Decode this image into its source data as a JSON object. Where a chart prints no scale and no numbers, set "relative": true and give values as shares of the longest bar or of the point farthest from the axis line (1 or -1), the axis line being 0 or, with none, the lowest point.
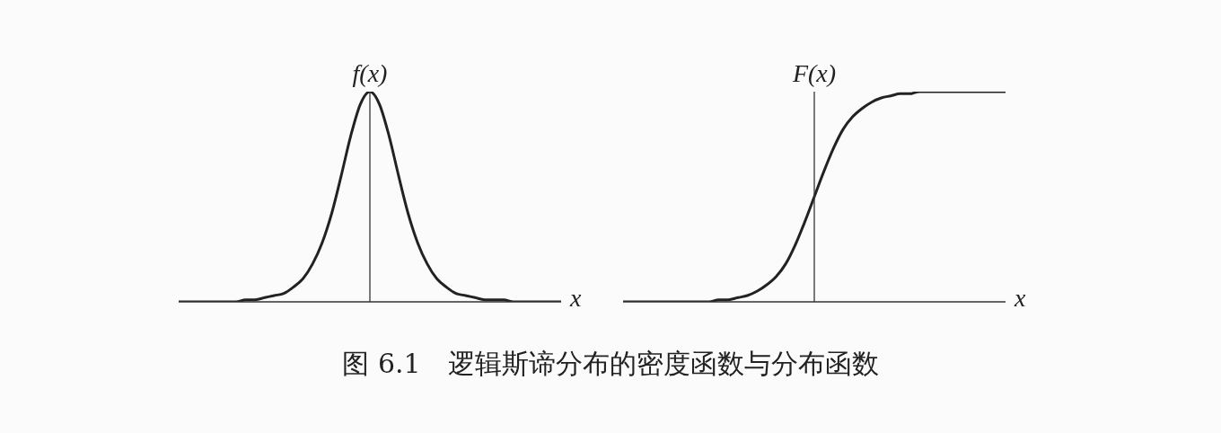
{
  "chart_data": [
    {
      "type": "line",
      "relative": true,
      "ylabel": "f(x)",
      "xlabel": "x",
      "legend": false,
      "marker": "none",
      "line_style": "solid",
      "categories": [
        null,
        null,
        null,
        null,
        null,
        null,
        null,
        null,
        null,
        null,
        null,
        null,
        null,
        null,
        null,
        null,
        null,
        null,
        null,
        null,
        null,
        null,
        null,
        null,
        null,
        null,
        null,
        null,
        null,
        null,
        null,
        null,
        null,
        null,
        null,
        null,
        null,
        null,
        null,
        null,
        null
      ],
      "series": [
        {
          "color": "#222222",
          "values": [
            0,
            0,
            0,
            0,
            0,
            0,
            0,
            0.01,
            0.01,
            0.02,
            0.03,
            0.04,
            0.07,
            0.11,
            0.18,
            0.28,
            0.42,
            0.6,
            0.79,
            0.94,
            1,
            0.94,
            0.79,
            0.6,
            0.42,
            0.28,
            0.18,
            0.11,
            0.07,
            0.04,
            0.03,
            0.02,
            0.01,
            0.01,
            0.01,
            0,
            0,
            0,
            0,
            0,
            0
          ]
        }
      ],
      "annotations": [
        "图 6.1　逻辑斯谛分布的密度函数与分布函数"
      ]
    },
    {
      "type": "line",
      "relative": true,
      "ylabel": "F(x)",
      "xlabel": "x",
      "legend": false,
      "marker": "none",
      "line_style": "solid",
      "categories": [
        null,
        null,
        null,
        null,
        null,
        null,
        null,
        null,
        null,
        null,
        null,
        null,
        null,
        null,
        null,
        null,
        null,
        null,
        null,
        null,
        null,
        null,
        null,
        null,
        null,
        null,
        null,
        null,
        null,
        null,
        null,
        null,
        null,
        null,
        null,
        null,
        null,
        null,
        null,
        null,
        null
      ],
      "series": [
        {
          "color": "#222222",
          "values": [
            0,
            0,
            0,
            0,
            0,
            0,
            0,
            0,
            0,
            0,
            0.01,
            0.01,
            0.02,
            0.03,
            0.05,
            0.08,
            0.12,
            0.18,
            0.27,
            0.38,
            0.5,
            0.62,
            0.73,
            0.82,
            0.88,
            0.92,
            0.95,
            0.97,
            0.98,
            0.99,
            0.99,
            1,
            1,
            1,
            1,
            1,
            1,
            1,
            1,
            1,
            1
          ]
        }
      ]
    }
  ]
}
